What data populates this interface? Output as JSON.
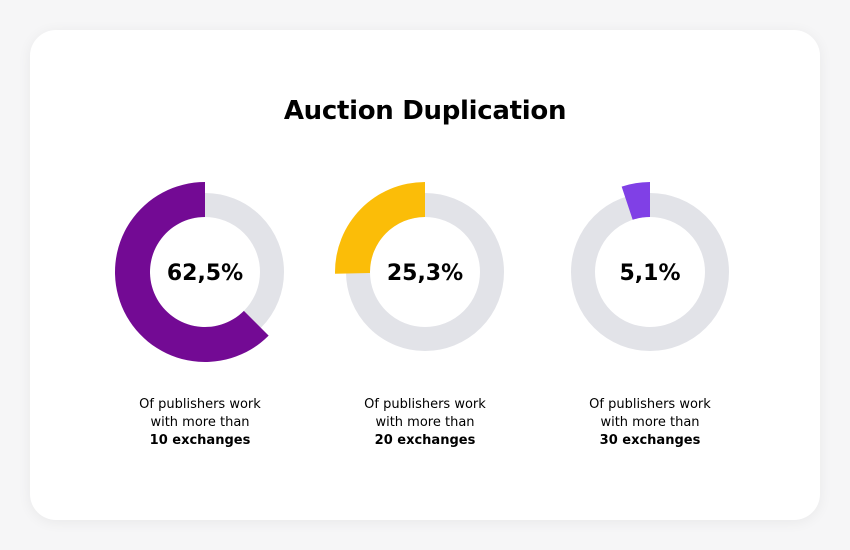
{
  "chart_data": [
    {
      "type": "donut",
      "value": 62.5,
      "label": "62,5%",
      "color": "#730a94",
      "track_color": "#e2e3e8",
      "caption_line1": "Of publishers work",
      "caption_line2": "with more than",
      "caption_bold": "10 exchanges"
    },
    {
      "type": "donut",
      "value": 25.3,
      "label": "25,3%",
      "color": "#fbbd08",
      "track_color": "#e2e3e8",
      "caption_line1": "Of publishers work",
      "caption_line2": "with more than",
      "caption_bold": "20 exchanges"
    },
    {
      "type": "donut",
      "value": 5.1,
      "label": "5,1%",
      "color": "#8040e6",
      "track_color": "#e2e3e8",
      "caption_line1": "Of publishers work",
      "caption_line2": "with more than",
      "caption_bold": "30 exchanges"
    }
  ],
  "title": "Auction Duplication"
}
